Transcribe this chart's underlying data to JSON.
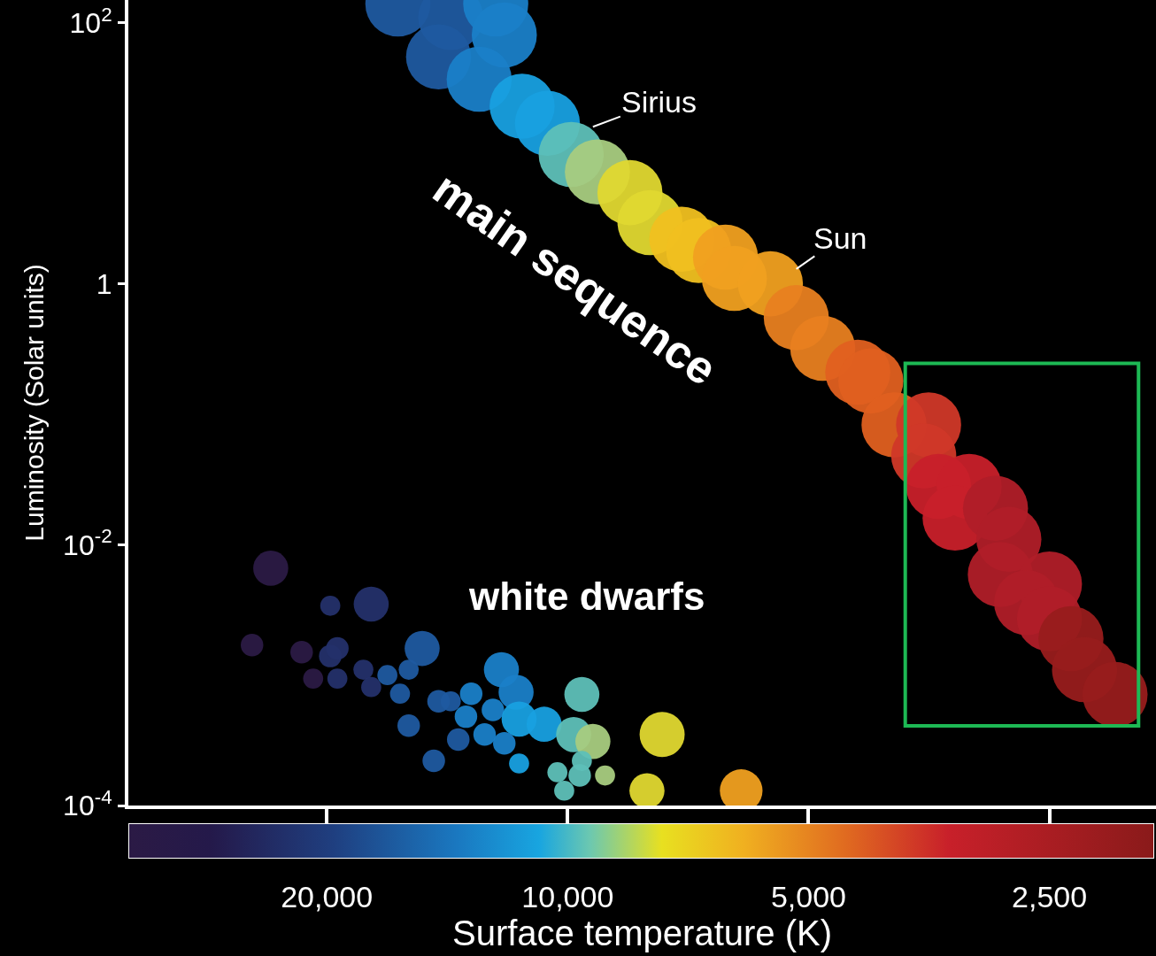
{
  "chart_data": {
    "type": "bubble",
    "xlabel": "Surface temperature (K)",
    "ylabel": "Luminosity (Solar units)",
    "log": "xy",
    "grid": false,
    "marker": "circle",
    "xlim": [
      35400,
      1840
    ],
    "xticks": [
      {
        "value": 20000,
        "label": "20,000"
      },
      {
        "value": 10000,
        "label": "10,000"
      },
      {
        "value": 5000,
        "label": "5,000"
      },
      {
        "value": 2500,
        "label": "2,500"
      }
    ],
    "ylim": [
      0.0001,
      150
    ],
    "yticks": [
      {
        "value": 0.0001,
        "label": "10$^{-4}$"
      },
      {
        "value": 0.01,
        "label": "10$^{-2}$"
      },
      1,
      {
        "value": 100,
        "label": "10$^{2}$"
      }
    ],
    "series": [
      {
        "x": [
          16300,
          14000,
          12300,
          12000,
          14500,
          12900,
          11400,
          10600,
          9900,
          9180,
          8360,
          7890,
          7200,
          6860,
          6350,
          6190,
          5580,
          5180,
          4800,
          4340,
          4180,
          3910,
          3540,
          3590,
          3440,
          3150,
          3280,
          2920,
          2810,
          2880,
          2500,
          2670,
          2500,
          2350,
          2260,
          2070
        ],
        "values": [
          140,
          110,
          140,
          81,
          55,
          37,
          23,
          17,
          9.8,
          7.2,
          5,
          2.95,
          2.2,
          1.8,
          1.6,
          1.1,
          1,
          0.55,
          0.32,
          0.21,
          0.18,
          0.083,
          0.083,
          0.048,
          0.028,
          0.028,
          0.016,
          0.019,
          0.011,
          0.0059,
          0.005,
          0.0036,
          0.0027,
          0.0019,
          0.0011,
          0.00071
        ],
        "sizes": [
          1,
          1,
          1,
          1,
          1,
          1,
          1,
          1,
          1,
          1,
          1,
          1,
          1,
          1,
          1,
          1,
          1,
          1,
          1,
          1,
          1,
          1,
          1,
          1,
          1,
          1,
          1,
          1,
          1,
          1,
          1,
          1,
          1,
          1,
          1,
          1
        ],
        "colors": [
          "#1f5aa0",
          "#1f5aa0",
          "#1a80c8",
          "#1a80c8",
          "#1f5aa0",
          "#1a80c8",
          "#18a0e0",
          "#18a0e0",
          "#5ec0b8",
          "#a8cc80",
          "#e0d830",
          "#e0d830",
          "#f0c020",
          "#f0c020",
          "#f0a020",
          "#f0a020",
          "#f0a020",
          "#e88020",
          "#e88020",
          "#e06020",
          "#e06020",
          "#e06020",
          "#d03828",
          "#d03828",
          "#c8202a",
          "#c8202a",
          "#c8202a",
          "#b01e28",
          "#b01e28",
          "#b01e28",
          "#b01e28",
          "#b01e28",
          "#b01e28",
          "#981c1c",
          "#981c1c",
          "#981c1c"
        ]
      },
      {
        "x": [
          23500,
          19800,
          17600,
          24800,
          21500,
          19800,
          19400,
          20800,
          19400,
          18000,
          17600,
          16800,
          16200,
          15800,
          15200,
          15800,
          14500,
          14000,
          13400,
          13200,
          12400,
          12100,
          11600,
          11500,
          12700,
          13700,
          12000,
          14700,
          11500,
          10700,
          9830,
          9600,
          9300,
          7620,
          9600,
          10300,
          9660,
          8980,
          10100,
          7960,
          6070
        ],
        "values": [
          0.0066,
          0.0034,
          0.0035,
          0.0017,
          0.0015,
          0.0014,
          0.0016,
          0.00094,
          0.00094,
          0.0011,
          0.00081,
          0.001,
          0.00072,
          0.0011,
          0.0016,
          0.00041,
          0.00063,
          0.00063,
          0.00048,
          0.00072,
          0.00054,
          0.0011,
          0.00074,
          0.00046,
          0.00035,
          0.00032,
          0.0003,
          0.00022,
          0.00021,
          0.00042,
          0.00035,
          0.00071,
          0.00031,
          0.00035,
          0.00022,
          0.00018,
          0.00017,
          0.00017,
          0.00013,
          0.00013,
          0.00013
        ],
        "sizes": [
          0.29,
          0.095,
          0.29,
          0.12,
          0.12,
          0.12,
          0.12,
          0.095,
          0.095,
          0.095,
          0.095,
          0.095,
          0.095,
          0.095,
          0.29,
          0.12,
          0.12,
          0.095,
          0.12,
          0.12,
          0.12,
          0.29,
          0.29,
          0.29,
          0.12,
          0.12,
          0.12,
          0.12,
          0.095,
          0.29,
          0.29,
          0.29,
          0.29,
          0.48,
          0.095,
          0.095,
          0.12,
          0.095,
          0.095,
          0.29,
          0.43
        ],
        "colors": [
          "#2b1a45",
          "#24306a",
          "#24306a",
          "#2b1a45",
          "#2b1a45",
          "#24306a",
          "#24306a",
          "#2b1a45",
          "#24306a",
          "#24306a",
          "#24306a",
          "#1f5aa0",
          "#1f5aa0",
          "#1f5aa0",
          "#1f5aa0",
          "#1f5aa0",
          "#1f5aa0",
          "#1f5aa0",
          "#1a80c8",
          "#1a80c8",
          "#1a80c8",
          "#1a80c8",
          "#1a80c8",
          "#18a0e0",
          "#1a80c8",
          "#1f5aa0",
          "#1a80c8",
          "#1f5aa0",
          "#18a0e0",
          "#18a0e0",
          "#5ec0b8",
          "#5ec0b8",
          "#a8cc80",
          "#e0d830",
          "#5ec0b8",
          "#5ec0b8",
          "#5ec0b8",
          "#a8cc80",
          "#5ec0b8",
          "#e0d830",
          "#f0a020"
        ]
      }
    ],
    "annotations": [
      {
        "text": "Sirius",
        "x": 9300,
        "y": 16
      },
      {
        "text": "Sun",
        "x": 5180,
        "y": 1.3
      },
      "main sequence",
      "white dwarfs"
    ]
  }
}
